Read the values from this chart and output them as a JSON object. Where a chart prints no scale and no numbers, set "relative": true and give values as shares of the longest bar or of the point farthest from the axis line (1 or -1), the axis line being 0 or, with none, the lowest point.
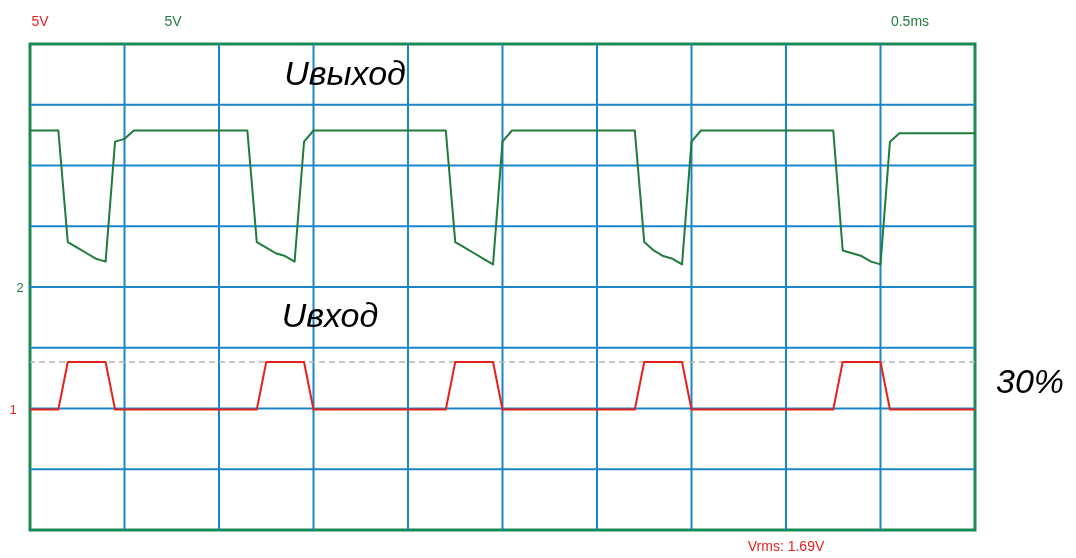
{
  "chart_data": {
    "type": "line",
    "relative": true,
    "grid": true,
    "legend": false,
    "marker": "none",
    "line_style": "solid",
    "categories": [
      null,
      null,
      null,
      null,
      null,
      null,
      null,
      null,
      null,
      null,
      null,
      null,
      null,
      null,
      null,
      null,
      null,
      null,
      null,
      null,
      null,
      null,
      null,
      null,
      null,
      null,
      null,
      null,
      null,
      null,
      null,
      null,
      null,
      null,
      null,
      null,
      null,
      null,
      null,
      null,
      null,
      null,
      null,
      null,
      null,
      null,
      null,
      null,
      null,
      null,
      null,
      null,
      null,
      null,
      null,
      null,
      null,
      null,
      null,
      null,
      null,
      null,
      null,
      null,
      null,
      null,
      null,
      null,
      null,
      null,
      null,
      null,
      null,
      null,
      null,
      null,
      null,
      null,
      null,
      null,
      null,
      null,
      null,
      null,
      null,
      null,
      null,
      null,
      null,
      null,
      null,
      null,
      null,
      null,
      null,
      null,
      null,
      null,
      null,
      null,
      null
    ],
    "series": [
      {
        "name": "Uвыход",
        "color": "#1e7b3c",
        "values": [
          1,
          1,
          1,
          1,
          0.6,
          0.58,
          0.56,
          0.54,
          0.53,
          0.96,
          0.97,
          1,
          1,
          1,
          1,
          1,
          1,
          1,
          1,
          1,
          1,
          1,
          1,
          1,
          0.6,
          0.58,
          0.56,
          0.55,
          0.53,
          0.96,
          1,
          1,
          1,
          1,
          1,
          1,
          1,
          1,
          1,
          1,
          1,
          1,
          1,
          1,
          1,
          0.6,
          0.58,
          0.56,
          0.54,
          0.52,
          0.96,
          1,
          1,
          1,
          1,
          1,
          1,
          1,
          1,
          1,
          1,
          1,
          1,
          1,
          1,
          0.6,
          0.57,
          0.55,
          0.54,
          0.52,
          0.96,
          1,
          1,
          1,
          1,
          1,
          1,
          1,
          1,
          1,
          1,
          1,
          1,
          1,
          1,
          1,
          0.57,
          0.56,
          0.55,
          0.53,
          0.52,
          0.96,
          0.99,
          0.99,
          0.99,
          0.99,
          0.99,
          0.99,
          0.99,
          0.99,
          0.99
        ]
      },
      {
        "name": "Uвход",
        "color": "#e8201c",
        "values": [
          0,
          0,
          0,
          0,
          0.17,
          0.17,
          0.17,
          0.17,
          0.17,
          0,
          0,
          0,
          0,
          0,
          0,
          0,
          0,
          0,
          0,
          0,
          0,
          0,
          0,
          0,
          0,
          0.17,
          0.17,
          0.17,
          0.17,
          0.17,
          0,
          0,
          0,
          0,
          0,
          0,
          0,
          0,
          0,
          0,
          0,
          0,
          0,
          0,
          0,
          0.17,
          0.17,
          0.17,
          0.17,
          0.17,
          0,
          0,
          0,
          0,
          0,
          0,
          0,
          0,
          0,
          0,
          0,
          0,
          0,
          0,
          0,
          0.17,
          0.17,
          0.17,
          0.17,
          0.17,
          0,
          0,
          0,
          0,
          0,
          0,
          0,
          0,
          0,
          0,
          0,
          0,
          0,
          0,
          0,
          0,
          0.17,
          0.17,
          0.17,
          0.17,
          0.17,
          0,
          0,
          0,
          0,
          0,
          0,
          0,
          0,
          0,
          0
        ]
      }
    ],
    "ref_lines": [
      {
        "axis": "y",
        "value": 0.17,
        "color": "#b4b4b4",
        "line_style": "dashed"
      }
    ],
    "annotations": [
      "5V",
      "5V",
      "0.5ms",
      "Vrms: 1.69V",
      "1",
      "2",
      "30%"
    ]
  }
}
